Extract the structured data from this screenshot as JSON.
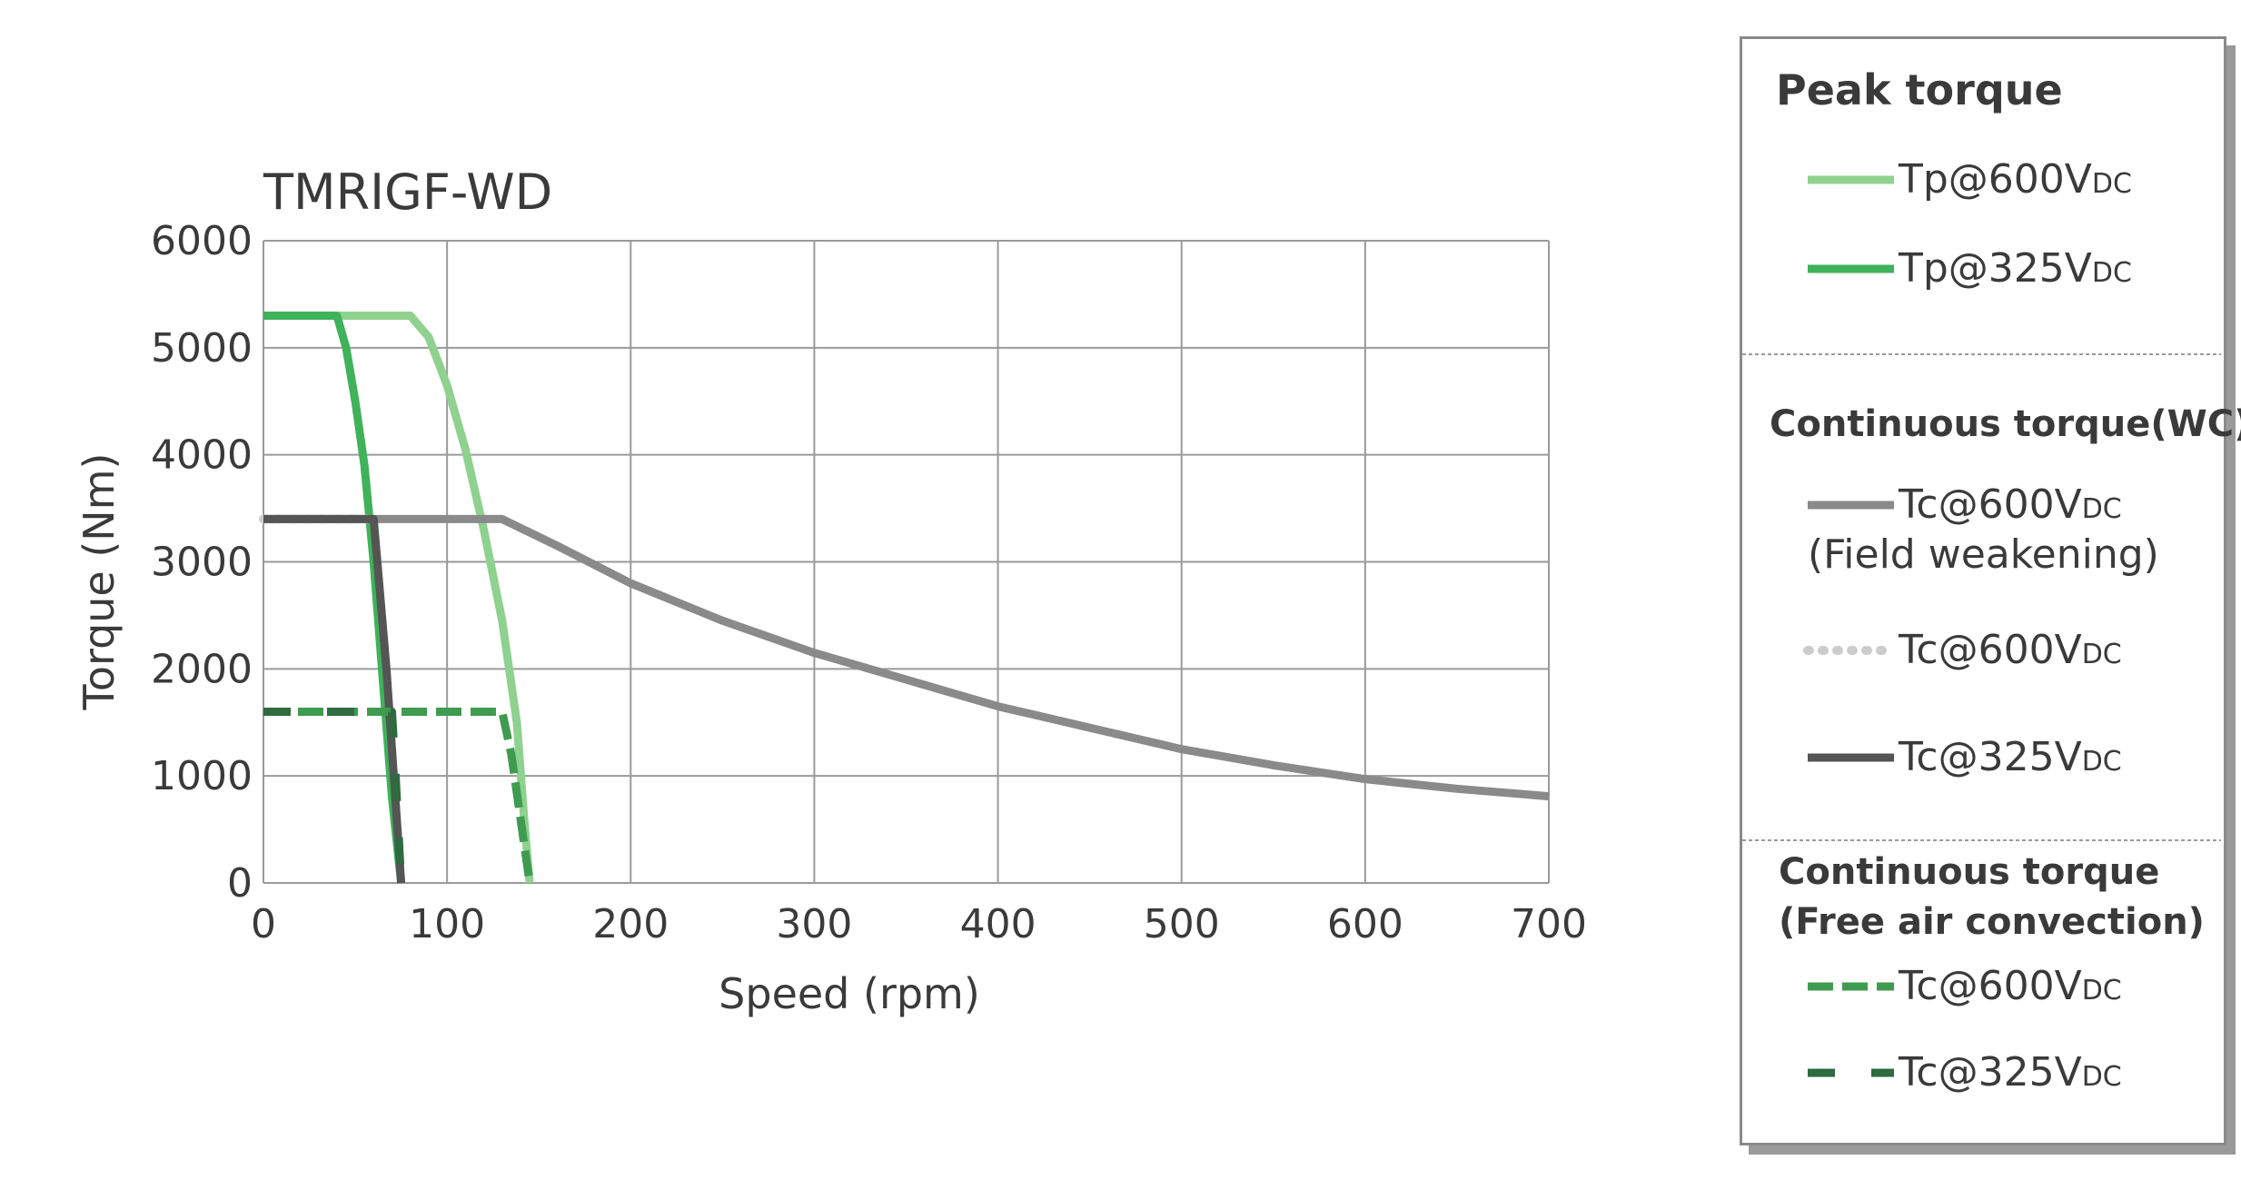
{
  "chart_data": {
    "type": "line",
    "title": "TMRIGF-WD",
    "xlabel": "Speed (rpm)",
    "ylabel": "Torque (Nm)",
    "xlim": [
      0,
      700
    ],
    "ylim": [
      0,
      6000
    ],
    "xticks": [
      0,
      100,
      200,
      300,
      400,
      500,
      600,
      700
    ],
    "yticks": [
      0,
      1000,
      2000,
      3000,
      4000,
      5000,
      6000
    ],
    "grid": true,
    "legend_position": "right",
    "legend_groups": [
      {
        "title": "Peak torque",
        "entries": [
          0,
          1
        ]
      },
      {
        "title": "Continuous torque(WC)",
        "entries": [
          2,
          3,
          4
        ]
      },
      {
        "title": "Continuous torque\n(Free air convection)",
        "entries": [
          5,
          6
        ]
      }
    ],
    "series": [
      {
        "name": "Tp@600VDC",
        "label_main": "Tp@600V",
        "label_sub": "DC",
        "color": "#8fd18f",
        "style": "solid",
        "points": [
          [
            0,
            5300
          ],
          [
            80,
            5300
          ],
          [
            90,
            5100
          ],
          [
            100,
            4650
          ],
          [
            110,
            4050
          ],
          [
            120,
            3300
          ],
          [
            130,
            2450
          ],
          [
            138,
            1500
          ],
          [
            142,
            600
          ],
          [
            145,
            0
          ]
        ]
      },
      {
        "name": "Tp@325VDC",
        "label_main": "Tp@325V",
        "label_sub": "DC",
        "color": "#3fb25a",
        "style": "solid",
        "points": [
          [
            0,
            5300
          ],
          [
            40,
            5300
          ],
          [
            45,
            5000
          ],
          [
            50,
            4500
          ],
          [
            55,
            3900
          ],
          [
            60,
            3000
          ],
          [
            65,
            1900
          ],
          [
            70,
            800
          ],
          [
            75,
            0
          ]
        ]
      },
      {
        "name": "Tc@600VDC (Field weakening)",
        "label_main": "Tc@600V",
        "label_sub": "DC",
        "label_extra": "(Field weakening)",
        "color": "#8a8a8a",
        "style": "solid",
        "points": [
          [
            0,
            3400
          ],
          [
            130,
            3400
          ],
          [
            160,
            3150
          ],
          [
            200,
            2800
          ],
          [
            250,
            2450
          ],
          [
            300,
            2150
          ],
          [
            350,
            1900
          ],
          [
            400,
            1650
          ],
          [
            450,
            1450
          ],
          [
            500,
            1250
          ],
          [
            550,
            1100
          ],
          [
            600,
            970
          ],
          [
            650,
            880
          ],
          [
            700,
            810
          ]
        ]
      },
      {
        "name": "Tc@600VDC",
        "label_main": "Tc@600V",
        "label_sub": "DC",
        "color": "#cccccc",
        "style": "dotted",
        "points": [
          [
            0,
            3400
          ],
          [
            60,
            3400
          ]
        ]
      },
      {
        "name": "Tc@325VDC",
        "label_main": "Tc@325V",
        "label_sub": "DC",
        "color": "#555555",
        "style": "solid",
        "points": [
          [
            0,
            3400
          ],
          [
            60,
            3400
          ],
          [
            63,
            2800
          ],
          [
            67,
            2000
          ],
          [
            71,
            1000
          ],
          [
            75,
            0
          ]
        ]
      },
      {
        "name": "Tc@600VDC (Free air convection)",
        "label_main": "Tc@600V",
        "label_sub": "DC",
        "color": "#3f9b50",
        "style": "dashed",
        "points": [
          [
            0,
            1600
          ],
          [
            130,
            1600
          ],
          [
            135,
            1200
          ],
          [
            140,
            600
          ],
          [
            145,
            0
          ]
        ]
      },
      {
        "name": "Tc@325VDC (Free air convection)",
        "label_main": "Tc@325V",
        "label_sub": "DC",
        "color": "#2e6b3f",
        "style": "dashed_wide",
        "points": [
          [
            0,
            1600
          ],
          [
            70,
            1600
          ],
          [
            72,
            1000
          ],
          [
            75,
            0
          ]
        ]
      }
    ]
  }
}
